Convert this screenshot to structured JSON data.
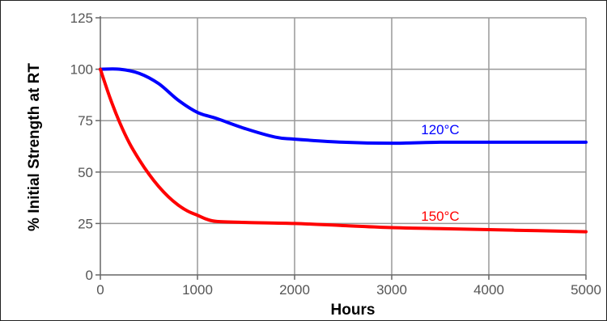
{
  "chart_data": {
    "type": "line",
    "title": "",
    "xlabel": "Hours",
    "ylabel": "% Initial Strength at RT",
    "xlim": [
      0,
      5000
    ],
    "ylim": [
      0,
      125
    ],
    "xticks": [
      0,
      1000,
      2000,
      3000,
      4000,
      5000
    ],
    "yticks": [
      0,
      25,
      50,
      75,
      100,
      125
    ],
    "grid": true,
    "legend": "inline labels",
    "series": [
      {
        "name": "120°C",
        "color": "#0000ff",
        "x": [
          0,
          200,
          400,
          600,
          800,
          1000,
          1200,
          1500,
          1800,
          2000,
          2500,
          3000,
          3500,
          4000,
          4500,
          5000
        ],
        "y": [
          100,
          100,
          98,
          93,
          85,
          79,
          76,
          71,
          67,
          66,
          64.5,
          64,
          64.5,
          64.5,
          64.5,
          64.5
        ]
      },
      {
        "name": "150°C",
        "color": "#ff0000",
        "x": [
          0,
          100,
          200,
          300,
          400,
          500,
          600,
          700,
          800,
          900,
          1000,
          1100,
          1200,
          1500,
          2000,
          2500,
          3000,
          3500,
          4000,
          4500,
          5000
        ],
        "y": [
          100,
          86,
          74,
          64,
          56,
          49,
          43,
          38,
          34,
          31,
          29,
          27,
          26,
          25.5,
          25,
          24,
          23,
          22.5,
          22,
          21.5,
          21
        ]
      }
    ]
  }
}
